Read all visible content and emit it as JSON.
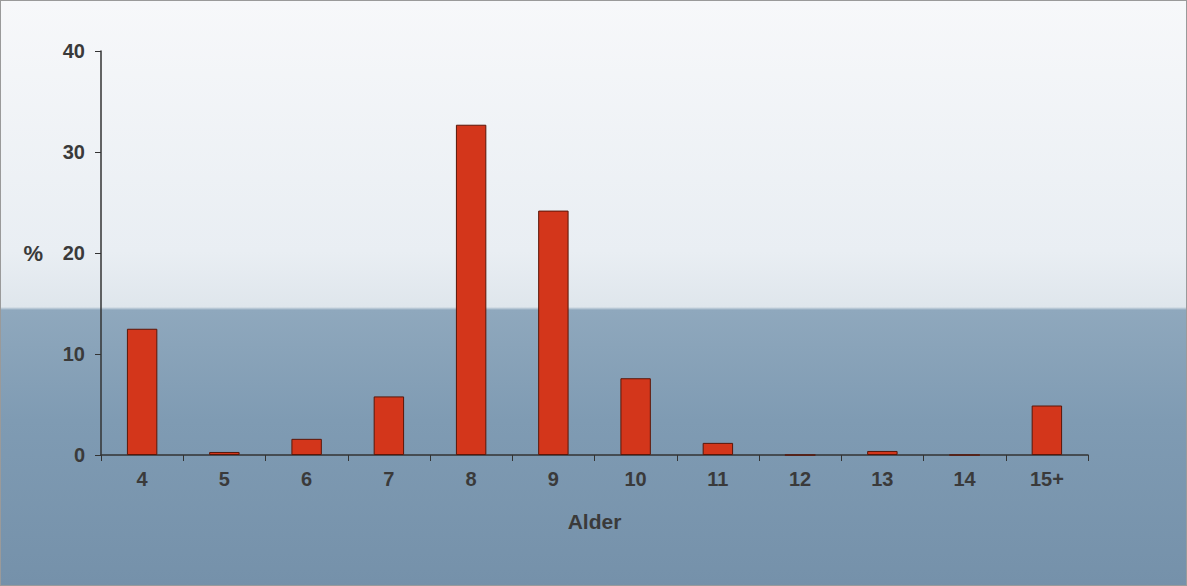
{
  "chart_data": {
    "type": "bar",
    "categories": [
      "4",
      "5",
      "6",
      "7",
      "8",
      "9",
      "10",
      "11",
      "12",
      "13",
      "14",
      "15+"
    ],
    "values": [
      12.5,
      0.3,
      1.6,
      5.8,
      32.7,
      24.2,
      7.6,
      1.2,
      0,
      0.4,
      0,
      4.9
    ],
    "color": "#d3361b",
    "xlabel": "Alder",
    "ylabel": "%",
    "ylim": [
      0,
      40
    ],
    "yticks": [
      0,
      10,
      20,
      30,
      40
    ],
    "grid": false
  }
}
